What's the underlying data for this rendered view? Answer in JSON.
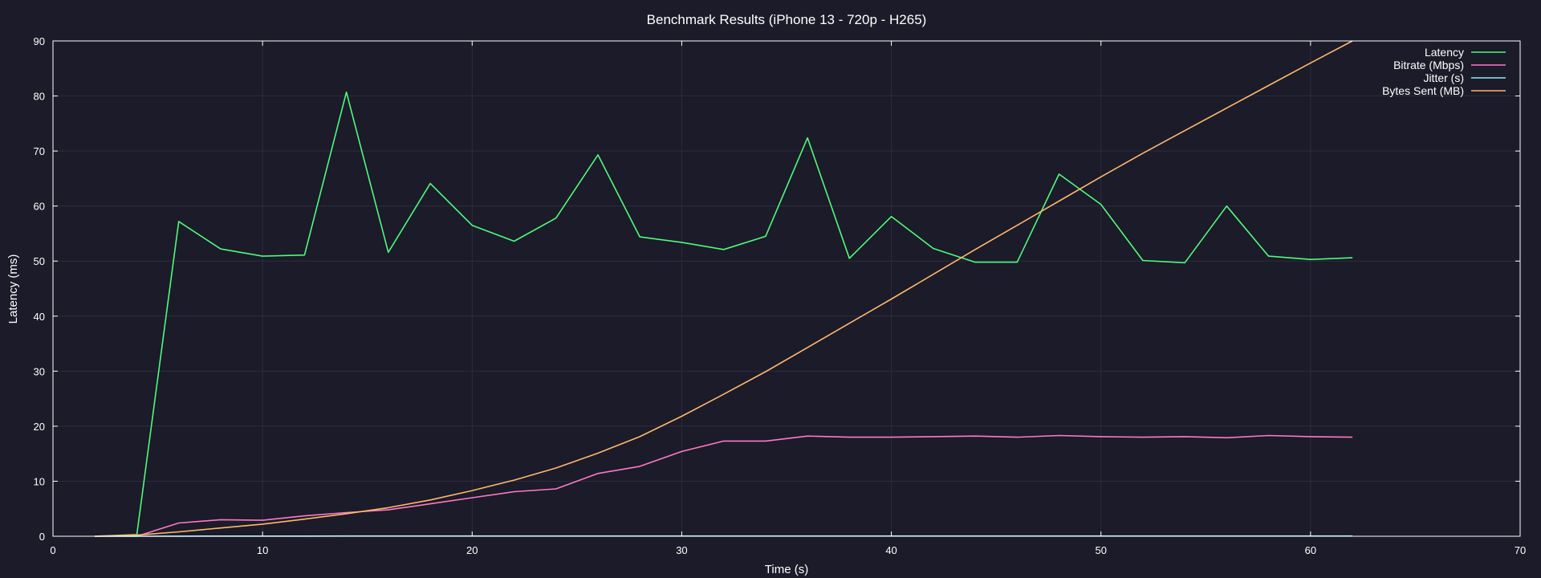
{
  "chart_data": {
    "type": "line",
    "title": "Benchmark Results (iPhone 13 - 720p - H265)",
    "xlabel": "Time (s)",
    "ylabel": "Latency (ms)",
    "xlim": [
      0,
      70
    ],
    "ylim": [
      0,
      90
    ],
    "xticks": [
      0,
      10,
      20,
      30,
      40,
      50,
      60,
      70
    ],
    "yticks": [
      0,
      10,
      20,
      30,
      40,
      50,
      60,
      70,
      80,
      90
    ],
    "grid": true,
    "legend_position": "top-right",
    "background": "#1b1b29",
    "x": [
      2,
      4,
      6,
      8,
      10,
      12,
      14,
      16,
      18,
      20,
      22,
      24,
      26,
      28,
      30,
      32,
      34,
      36,
      38,
      40,
      42,
      44,
      46,
      48,
      50,
      52,
      54,
      56,
      58,
      60,
      62
    ],
    "series": [
      {
        "name": "Latency",
        "color": "#50fa7b",
        "values": [
          0,
          0.3,
          57.2,
          52.2,
          50.9,
          51.1,
          80.7,
          51.6,
          64.1,
          56.5,
          53.6,
          57.8,
          69.3,
          54.4,
          53.4,
          52.1,
          54.5,
          72.4,
          50.5,
          58.1,
          52.3,
          49.8,
          49.8,
          65.8,
          60.3,
          50.1,
          49.7,
          60.0,
          50.9,
          50.3,
          50.6
        ]
      },
      {
        "name": "Bitrate (Mbps)",
        "color": "#ff79c6",
        "values": [
          0,
          0,
          2.4,
          3.0,
          2.9,
          3.7,
          4.3,
          4.8,
          5.9,
          7.0,
          8.1,
          8.6,
          11.4,
          12.7,
          15.4,
          17.3,
          17.3,
          18.2,
          18.0,
          18.0,
          18.1,
          18.2,
          18.0,
          18.3,
          18.1,
          18.0,
          18.1,
          17.9,
          18.3,
          18.1,
          18.0
        ]
      },
      {
        "name": "Jitter (s)",
        "color": "#8be9fd",
        "values": [
          0,
          0,
          0.02,
          0.03,
          0.03,
          0.03,
          0.04,
          0.04,
          0.04,
          0.05,
          0.05,
          0.05,
          0.05,
          0.05,
          0.05,
          0.05,
          0.05,
          0.05,
          0.05,
          0.05,
          0.04,
          0.04,
          0.04,
          0.04,
          0.04,
          0.04,
          0.04,
          0.04,
          0.04,
          0.04,
          0.04
        ]
      },
      {
        "name": "Bytes Sent (MB)",
        "color": "#ffb86c",
        "values": [
          0,
          0.2,
          0.8,
          1.5,
          2.2,
          3.1,
          4.1,
          5.2,
          6.6,
          8.3,
          10.2,
          12.4,
          15.1,
          18.1,
          21.8,
          25.8,
          29.9,
          34.3,
          38.7,
          43.1,
          47.6,
          52.1,
          56.5,
          60.9,
          65.3,
          69.6,
          73.7,
          77.8,
          81.9,
          86.0,
          90.0
        ]
      }
    ]
  }
}
